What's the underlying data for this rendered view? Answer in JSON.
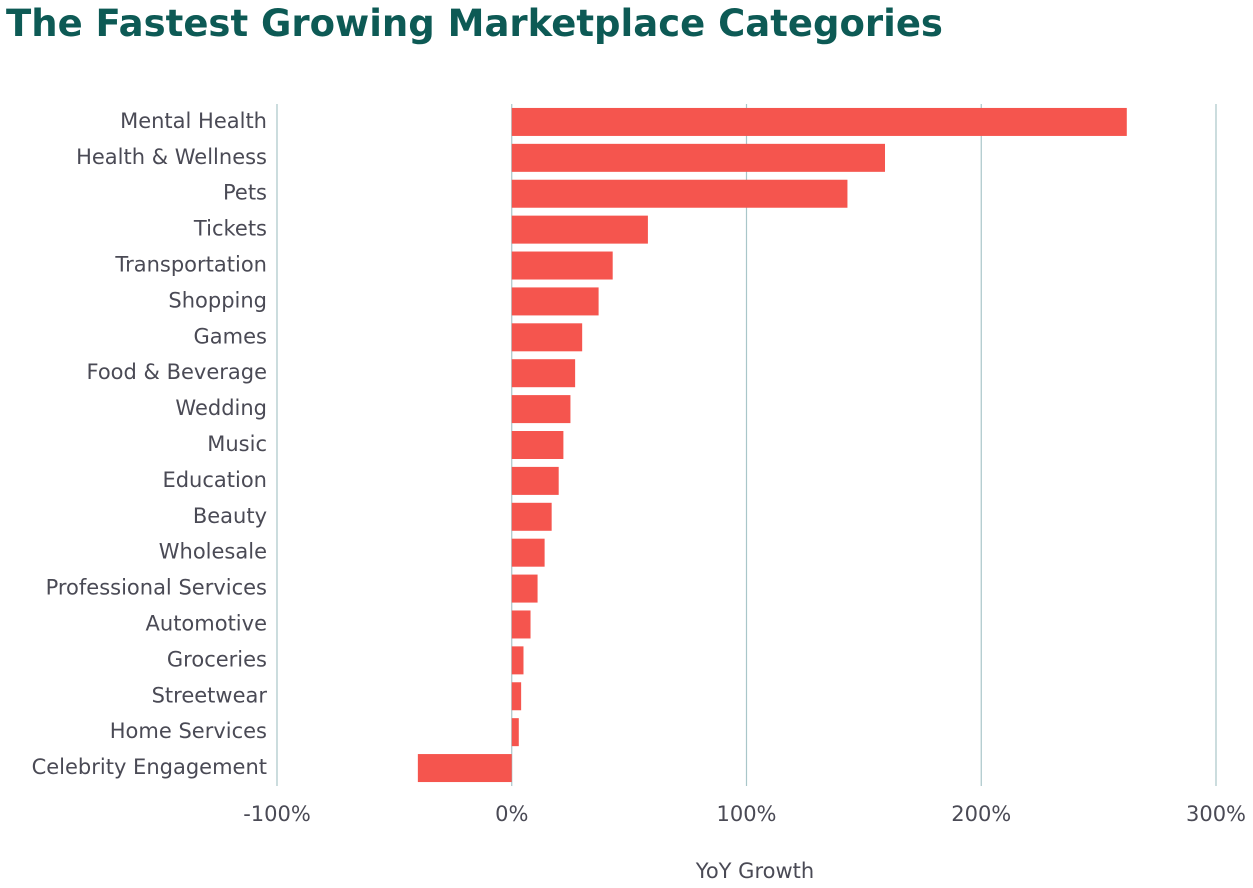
{
  "chart_data": {
    "type": "bar",
    "orientation": "horizontal",
    "title": "The Fastest Growing Marketplace Categories",
    "x_label": "YoY Growth",
    "categories": [
      "Mental Health",
      "Health & Wellness",
      "Pets",
      "Tickets",
      "Transportation",
      "Shopping",
      "Games",
      "Food & Beverage",
      "Wedding",
      "Music",
      "Education",
      "Beauty",
      "Wholesale",
      "Professional Services",
      "Automotive",
      "Groceries",
      "Streetwear",
      "Home Services",
      "Celebrity Engagement"
    ],
    "values": [
      262,
      159,
      143,
      58,
      43,
      37,
      30,
      27,
      25,
      22,
      20,
      17,
      14,
      11,
      8,
      5,
      4,
      3,
      -40
    ],
    "color": "#f5554e",
    "xlim": [
      -100,
      300
    ],
    "xticks": [
      {
        "value": -100,
        "label": "-100%"
      },
      {
        "value": 0,
        "label": "0%"
      },
      {
        "value": 100,
        "label": "100%"
      },
      {
        "value": 200,
        "label": "200%"
      },
      {
        "value": 300,
        "label": "300%"
      }
    ],
    "grid": true
  }
}
